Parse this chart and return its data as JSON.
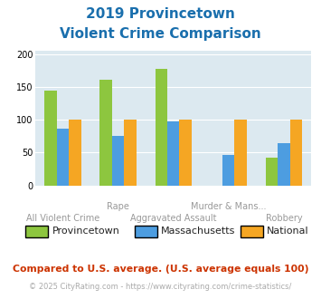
{
  "title_line1": "2019 Provincetown",
  "title_line2": "Violent Crime Comparison",
  "cat_line1": [
    "",
    "Rape",
    "",
    "Murder & Mans...",
    ""
  ],
  "cat_line2": [
    "All Violent Crime",
    "",
    "Aggravated Assault",
    "",
    "Robbery"
  ],
  "provincetown": [
    145,
    161,
    178,
    0,
    42
  ],
  "massachusetts": [
    86,
    75,
    97,
    46,
    65
  ],
  "national": [
    100,
    100,
    100,
    100,
    100
  ],
  "colors": {
    "provincetown": "#8dc63f",
    "massachusetts": "#4d9de0",
    "national": "#f5a623"
  },
  "ylim": [
    0,
    205
  ],
  "yticks": [
    0,
    50,
    100,
    150,
    200
  ],
  "background_color": "#dce9f0",
  "title_color": "#1a6fad",
  "footer1": "Compared to U.S. average. (U.S. average equals 100)",
  "footer2": "© 2025 CityRating.com - https://www.cityrating.com/crime-statistics/",
  "footer1_color": "#cc3300",
  "footer2_color": "#aaaaaa",
  "label_color": "#999999",
  "legend_label_color": "#222222"
}
